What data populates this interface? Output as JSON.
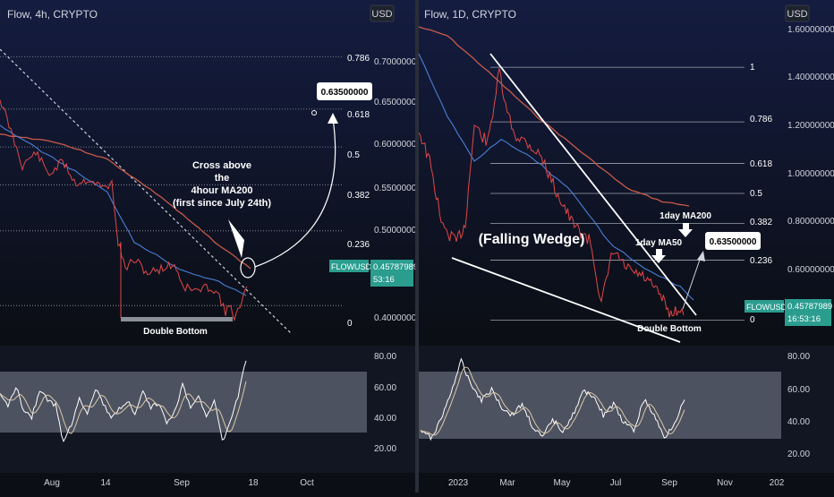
{
  "colors": {
    "background_top": "#121a3a",
    "background_bottom": "#0b0e14",
    "price": "#e04848",
    "ma_red": "#c85a4a",
    "ma_blue": "#4a7fd6",
    "rsi": "#ffffff",
    "rsi_band": "#7f8594",
    "badge": "#2a9d8f",
    "fib_line": "#9aa0ab",
    "text": "#d1d4dc"
  },
  "left_panel": {
    "title": "Flow, 4h, CRYPTO",
    "currency": "USD",
    "price_badge_symbol": "FLOWUSD",
    "price_badge_value": "0.45787989",
    "price_badge_timer": "53:16",
    "annotation_cross": [
      "Cross above",
      "the",
      "4hour MA200",
      "(first since July 24th)"
    ],
    "annotation_bottom": "Double Bottom",
    "target_label": "0.63500000",
    "fib_labels": [
      "0.786",
      "0.618",
      "0.5",
      "0.382",
      "0.236",
      "0"
    ],
    "price_axis_labels": [
      "0.70000000",
      "0.65000000",
      "0.60000000",
      "0.55000000",
      "0.50000000",
      "0.40000000"
    ],
    "rsi_axis_labels": [
      "80.00",
      "60.00",
      "40.00",
      "20.00"
    ],
    "time_axis_labels": [
      "Aug",
      "14",
      "Sep",
      "18",
      "Oct"
    ]
  },
  "right_panel": {
    "title": "Flow, 1D, CRYPTO",
    "currency": "USD",
    "price_badge_symbol": "FLOWUSD",
    "price_badge_value": "0.45787989",
    "price_badge_timer": "16:53:16",
    "annotation_wedge": "(Falling Wedge)",
    "annotation_ma200": "1day MA200",
    "annotation_ma50": "1day MA50",
    "annotation_bottom": "Double Bottom",
    "target_label": "0.63500000",
    "fib_labels": [
      "1",
      "0.786",
      "0.618",
      "0.5",
      "0.382",
      "0.236",
      "0"
    ],
    "price_axis_labels": [
      "1.60000000",
      "1.40000000",
      "1.20000000",
      "1.00000000",
      "0.80000000",
      "0.60000000"
    ],
    "rsi_axis_labels": [
      "80.00",
      "60.00",
      "40.00",
      "20.00"
    ],
    "time_axis_labels": [
      "2023",
      "Mar",
      "May",
      "Jul",
      "Sep",
      "Nov",
      "202"
    ]
  },
  "chart_data": [
    {
      "type": "line",
      "title": "Flow, 4h, CRYPTO",
      "symbol": "FLOWUSD",
      "timeframe": "4h",
      "last_price": 0.45787989,
      "target_price": 0.635,
      "fib_levels": {
        "0.786": 0.688,
        "0.618": 0.631,
        "0.5": 0.59,
        "0.382": 0.549,
        "0.236": 0.499,
        "0": 0.418
      },
      "ylim": [
        0.39,
        0.73
      ],
      "series": [
        {
          "name": "Price",
          "x": [
            "Jul 24",
            "Aug 1",
            "Aug 8",
            "Aug 14",
            "Aug 17",
            "Aug 24",
            "Aug 30",
            "Sep 5",
            "Sep 10",
            "Sep 14"
          ],
          "values": [
            0.6,
            0.57,
            0.555,
            0.56,
            0.47,
            0.46,
            0.455,
            0.435,
            0.42,
            0.458
          ]
        },
        {
          "name": "4hour MA200",
          "x": [
            "Jul 24",
            "Aug 8",
            "Aug 20",
            "Sep 1",
            "Sep 14"
          ],
          "values": [
            0.593,
            0.575,
            0.53,
            0.49,
            0.455
          ]
        }
      ],
      "rsi": {
        "ylim": [
          15,
          85
        ],
        "band": [
          30,
          70
        ],
        "values": [
          55,
          48,
          62,
          45,
          40,
          60,
          52,
          48,
          22,
          35,
          55,
          42,
          60,
          50,
          38,
          45,
          52,
          40,
          58,
          46,
          50,
          35,
          45,
          62,
          48,
          55,
          40,
          52,
          22,
          38,
          55,
          80
        ]
      }
    },
    {
      "type": "line",
      "title": "Flow, 1D, CRYPTO",
      "symbol": "FLOWUSD",
      "timeframe": "1D",
      "last_price": 0.45787989,
      "target_price": 0.635,
      "fib_levels": {
        "1": 1.43,
        "0.786": 1.22,
        "0.618": 1.06,
        "0.5": 0.945,
        "0.382": 0.83,
        "0.236": 0.688,
        "0": 0.458
      },
      "ylim": [
        0.38,
        1.62
      ],
      "series": [
        {
          "name": "Price",
          "x": [
            "Dec 2022",
            "Jan 2023",
            "Feb 2023",
            "Mar 2023",
            "Apr 2023",
            "May 2023",
            "Jun 2023",
            "Jul 2023",
            "Aug 2023",
            "Sep 2023"
          ],
          "values": [
            0.85,
            0.72,
            1.25,
            1.45,
            1.05,
            0.85,
            0.55,
            0.68,
            0.5,
            0.458
          ]
        },
        {
          "name": "1day MA200",
          "x": [
            "Dec 2022",
            "Mar 2023",
            "May 2023",
            "Jul 2023",
            "Sep 2023"
          ],
          "values": [
            1.6,
            1.35,
            1.05,
            0.85,
            0.76
          ]
        },
        {
          "name": "1day MA50",
          "x": [
            "Dec 2022",
            "Feb 2023",
            "Apr 2023",
            "Jun 2023",
            "Aug 2023",
            "Sep 2023"
          ],
          "values": [
            1.35,
            1.0,
            1.25,
            0.85,
            0.62,
            0.52
          ]
        }
      ],
      "rsi": {
        "ylim": [
          15,
          85
        ],
        "band": [
          30,
          70
        ],
        "values": [
          35,
          30,
          42,
          60,
          80,
          65,
          55,
          62,
          50,
          45,
          52,
          38,
          30,
          42,
          35,
          45,
          60,
          58,
          45,
          52,
          40,
          35,
          55,
          45,
          30,
          40,
          55
        ]
      }
    }
  ]
}
